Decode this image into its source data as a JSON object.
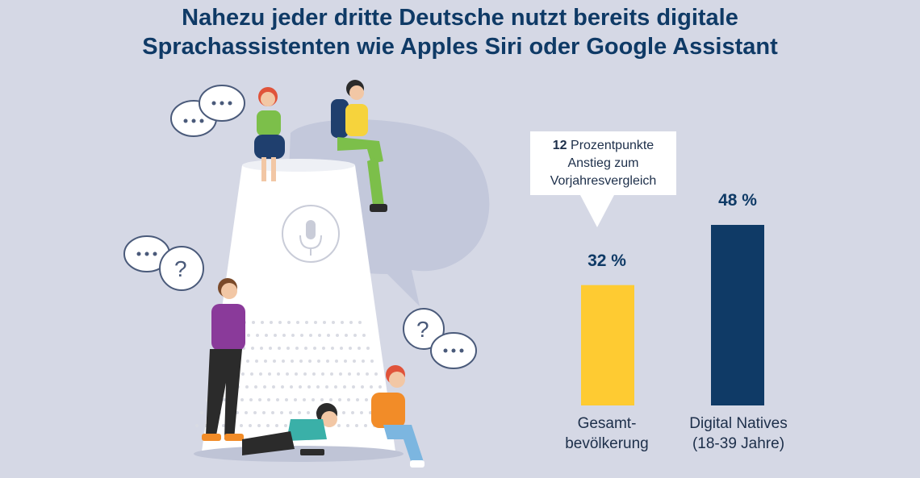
{
  "title": {
    "line1": "Nahezu jeder dritte Deutsche nutzt bereits digitale",
    "line2": "Sprachassistenten wie Apples Siri oder Google Assistant"
  },
  "callout": {
    "bold": "12",
    "line1_rest": " Prozentpunkte",
    "line2": "Anstieg zum",
    "line3": "Vorjahresvergleich"
  },
  "chart_data": {
    "type": "bar",
    "categories": [
      "Gesamt-\nbevölkerung",
      "Digital Natives\n(18-39 Jahre)"
    ],
    "category_lines": [
      [
        "Gesamt-",
        "bevölkerung"
      ],
      [
        "Digital Natives",
        "(18-39 Jahre)"
      ]
    ],
    "values": [
      32,
      48
    ],
    "value_labels": [
      "32 %",
      "48 %"
    ],
    "colors": [
      "#fecb32",
      "#0f3a66"
    ],
    "ylim": [
      0,
      50
    ],
    "grid": false,
    "legend": "none"
  },
  "colors": {
    "background": "#d5d8e5",
    "title": "#0f3a66",
    "accent_yellow": "#fecb32",
    "accent_navy": "#0f3a66"
  }
}
